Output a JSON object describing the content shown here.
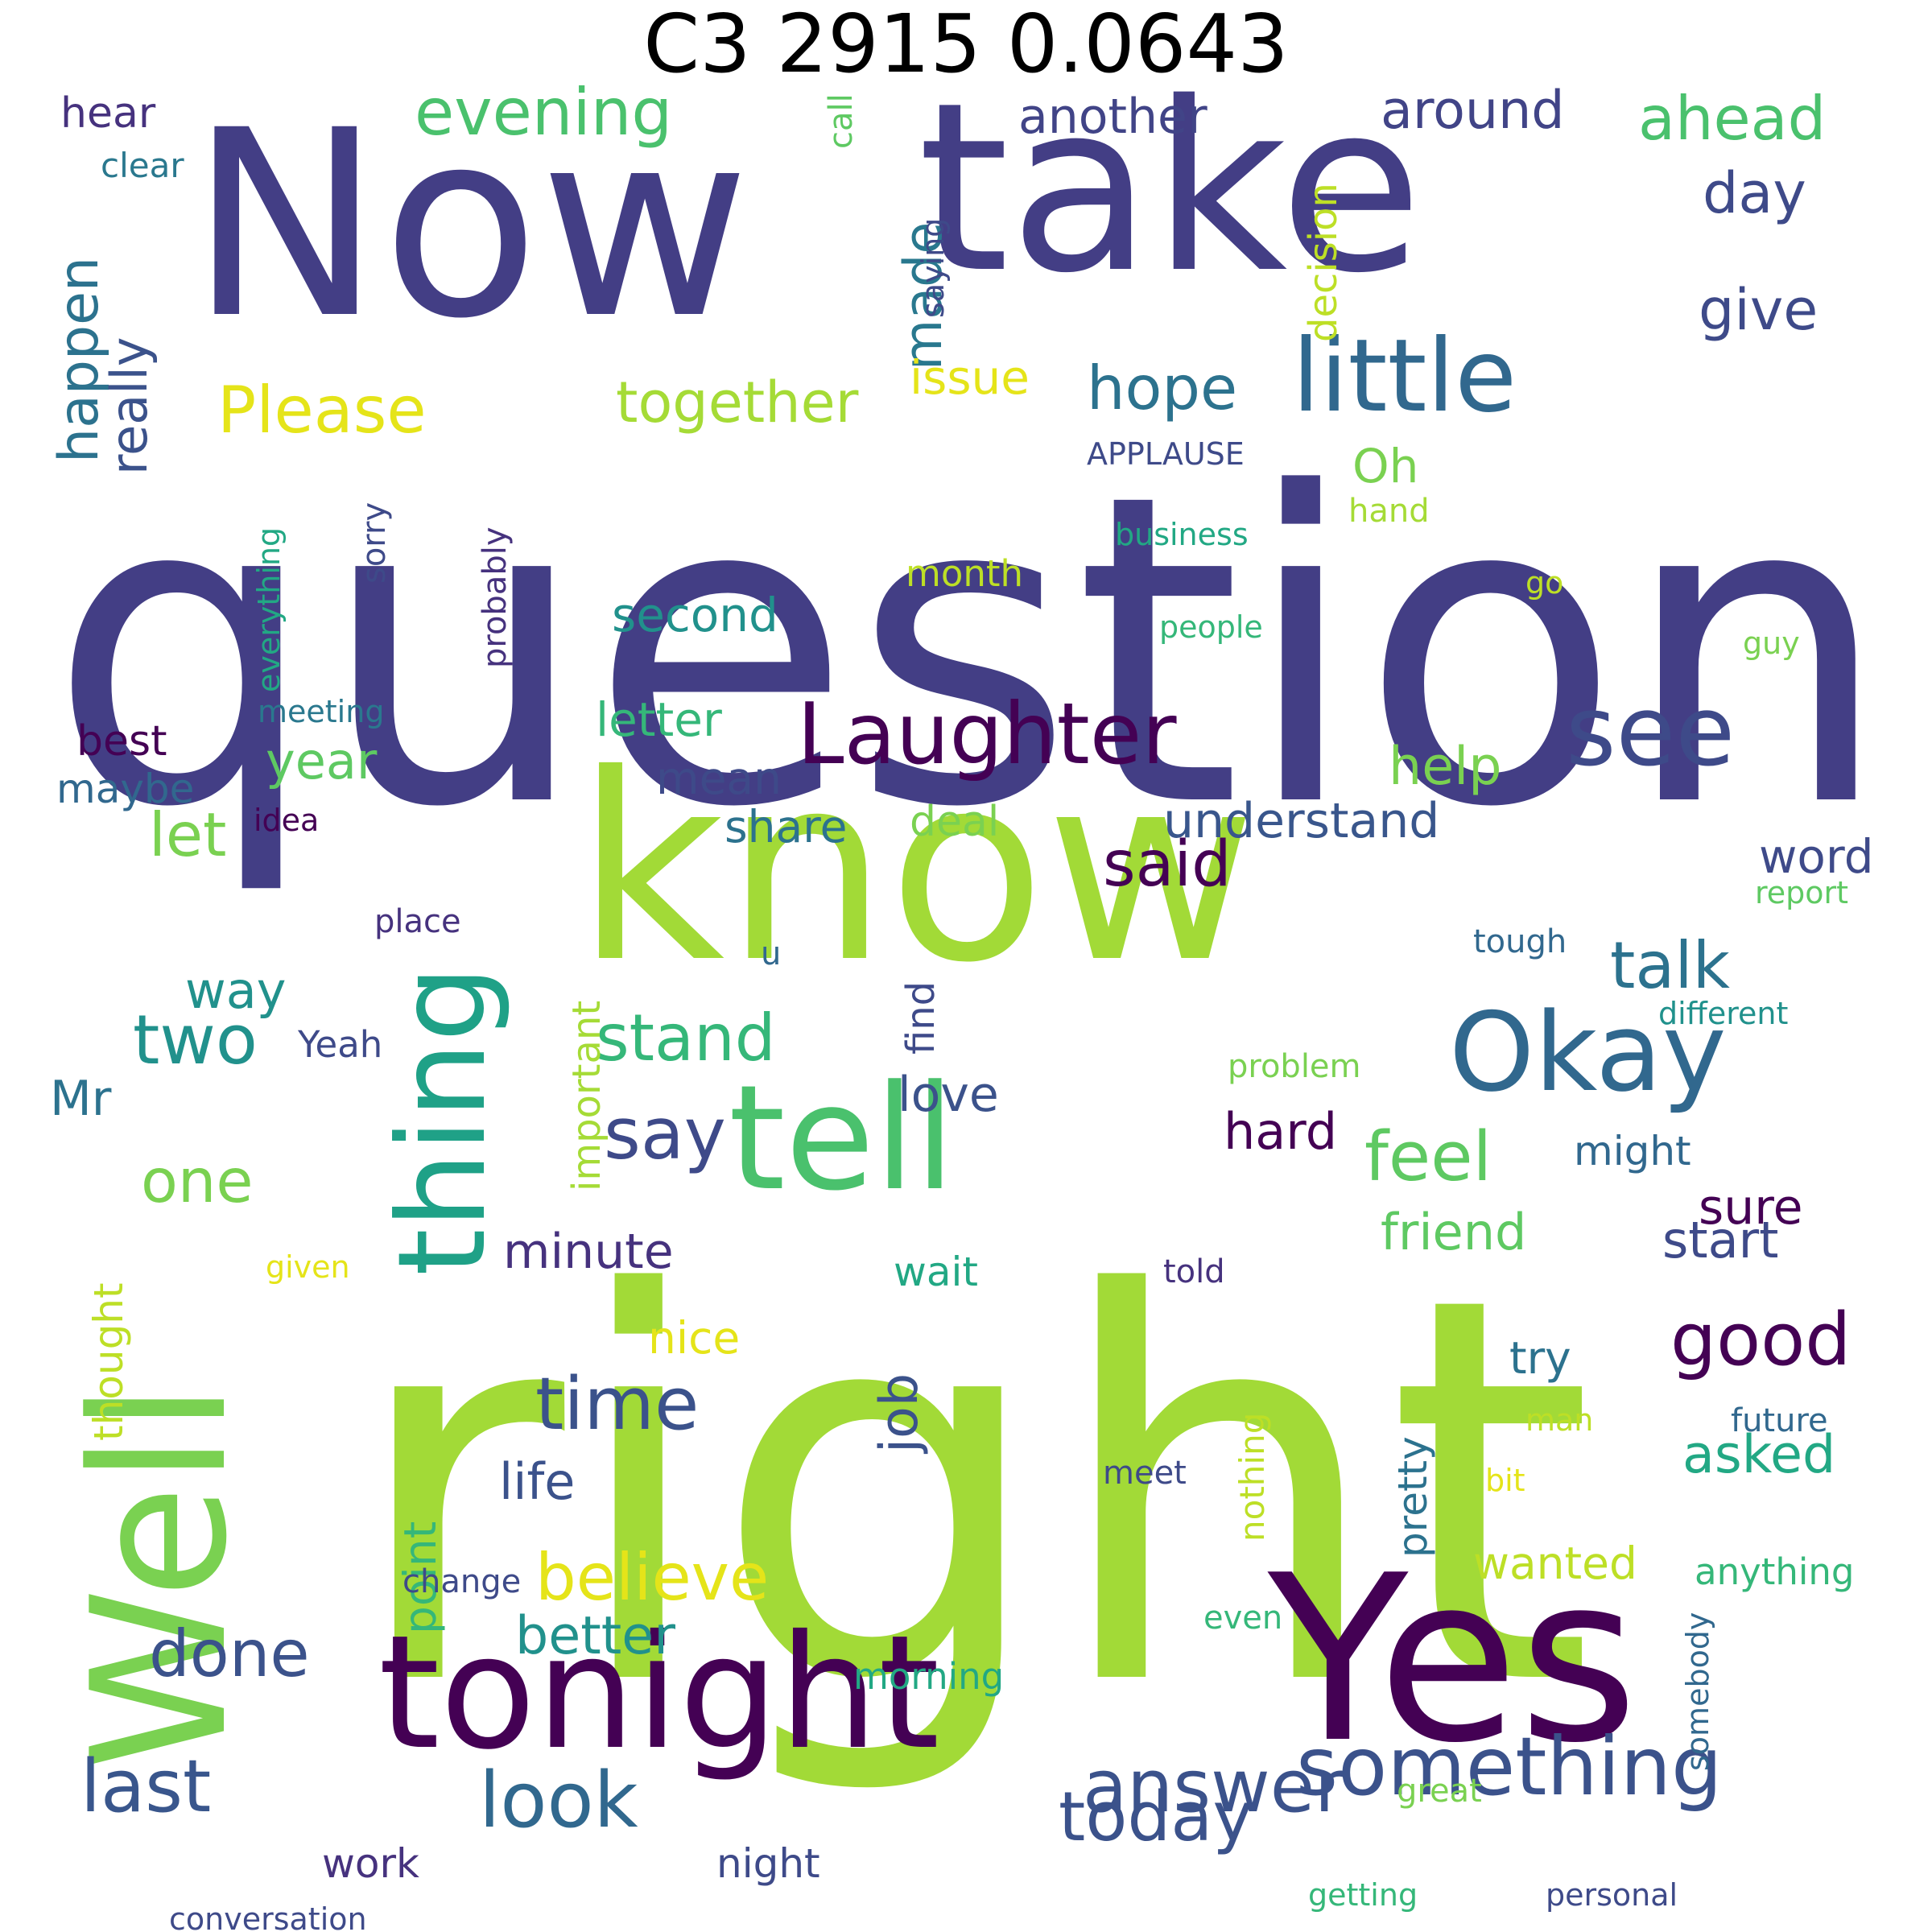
{
  "title": "C3 2915 0.0643",
  "words": [
    {
      "text": "question",
      "color": "#433e85"
    },
    {
      "text": "right",
      "color": "#a2da37"
    },
    {
      "text": "Now",
      "color": "#433e85"
    },
    {
      "text": "take",
      "color": "#433e85"
    },
    {
      "text": "know",
      "color": "#a2da37"
    },
    {
      "text": "Well",
      "color": "#7ad151"
    },
    {
      "text": "Yes",
      "color": "#440154"
    },
    {
      "text": "tonight",
      "color": "#440154"
    },
    {
      "text": "tell",
      "color": "#4ac16d"
    },
    {
      "text": "Okay",
      "color": "#31688e"
    },
    {
      "text": "thing",
      "color": "#1fa187"
    },
    {
      "text": "little",
      "color": "#31688e"
    },
    {
      "text": "Laughter",
      "color": "#440154"
    },
    {
      "text": "see",
      "color": "#3e4a89"
    },
    {
      "text": "something",
      "color": "#3b528b"
    },
    {
      "text": "Please",
      "color": "#e5e419"
    },
    {
      "text": "evening",
      "color": "#4ac16d"
    },
    {
      "text": "together",
      "color": "#a5db36"
    },
    {
      "text": "believe",
      "color": "#e5e419"
    },
    {
      "text": "time",
      "color": "#3b528b"
    },
    {
      "text": "said",
      "color": "#440154"
    },
    {
      "text": "say",
      "color": "#3e4a89"
    },
    {
      "text": "good",
      "color": "#440154"
    },
    {
      "text": "feel",
      "color": "#5ec962"
    },
    {
      "text": "talk",
      "color": "#2c728e"
    },
    {
      "text": "hope",
      "color": "#2c728e"
    },
    {
      "text": "stand",
      "color": "#35b779"
    },
    {
      "text": "two",
      "color": "#21918c"
    },
    {
      "text": "one",
      "color": "#7ad151"
    },
    {
      "text": "let",
      "color": "#7ad151"
    },
    {
      "text": "done",
      "color": "#3b528b"
    },
    {
      "text": "last",
      "color": "#39568c"
    },
    {
      "text": "look",
      "color": "#31688e"
    },
    {
      "text": "today",
      "color": "#3b528b"
    },
    {
      "text": "answer",
      "color": "#3b528b"
    },
    {
      "text": "happen",
      "color": "#2c728e"
    },
    {
      "text": "really",
      "color": "#3b528b"
    },
    {
      "text": "made",
      "color": "#29788e"
    },
    {
      "text": "another",
      "color": "#414487"
    },
    {
      "text": "around",
      "color": "#414487"
    },
    {
      "text": "ahead",
      "color": "#4ac16d"
    },
    {
      "text": "day",
      "color": "#3e4a89"
    },
    {
      "text": "give",
      "color": "#3e4a89"
    },
    {
      "text": "decision",
      "color": "#bddf26"
    },
    {
      "text": "issue",
      "color": "#e5e419"
    },
    {
      "text": "Oh",
      "color": "#7ad151"
    },
    {
      "text": "hear",
      "color": "#46327e"
    },
    {
      "text": "clear",
      "color": "#2a788e"
    },
    {
      "text": "call",
      "color": "#5ec962"
    },
    {
      "text": "saying",
      "color": "#3e4a89"
    },
    {
      "text": "APPLAUSE",
      "color": "#3e4a89"
    },
    {
      "text": "hand",
      "color": "#a5db36"
    },
    {
      "text": "business",
      "color": "#22a884"
    },
    {
      "text": "month",
      "color": "#bddf26"
    },
    {
      "text": "go",
      "color": "#bddf26"
    },
    {
      "text": "people",
      "color": "#35b779"
    },
    {
      "text": "guy",
      "color": "#7ad151"
    },
    {
      "text": "second",
      "color": "#21918c"
    },
    {
      "text": "letter",
      "color": "#35b779"
    },
    {
      "text": "help",
      "color": "#7ad151"
    },
    {
      "text": "mean",
      "color": "#3e4a89"
    },
    {
      "text": "year",
      "color": "#5ec962"
    },
    {
      "text": "share",
      "color": "#2c728e"
    },
    {
      "text": "deal",
      "color": "#7ad151"
    },
    {
      "text": "understand",
      "color": "#39568c"
    },
    {
      "text": "word",
      "color": "#3e4a89"
    },
    {
      "text": "report",
      "color": "#5ec962"
    },
    {
      "text": "everything",
      "color": "#22a884"
    },
    {
      "text": "sorry",
      "color": "#3e4a89"
    },
    {
      "text": "probably",
      "color": "#46327e"
    },
    {
      "text": "meeting",
      "color": "#2a788e"
    },
    {
      "text": "best",
      "color": "#440154"
    },
    {
      "text": "maybe",
      "color": "#31688e"
    },
    {
      "text": "idea",
      "color": "#440154"
    },
    {
      "text": "place",
      "color": "#46327e"
    },
    {
      "text": "u",
      "color": "#31688e"
    },
    {
      "text": "tough",
      "color": "#31688e"
    },
    {
      "text": "different",
      "color": "#21918c"
    },
    {
      "text": "important",
      "color": "#a5db36"
    },
    {
      "text": "find",
      "color": "#3e4a89"
    },
    {
      "text": "way",
      "color": "#21918c"
    },
    {
      "text": "Mr",
      "color": "#2c728e"
    },
    {
      "text": "Yeah",
      "color": "#3e4a89"
    },
    {
      "text": "love",
      "color": "#3b528b"
    },
    {
      "text": "problem",
      "color": "#7ad151"
    },
    {
      "text": "hard",
      "color": "#440154"
    },
    {
      "text": "might",
      "color": "#31688e"
    },
    {
      "text": "sure",
      "color": "#440154"
    },
    {
      "text": "minute",
      "color": "#46327e"
    },
    {
      "text": "friend",
      "color": "#5ec962"
    },
    {
      "text": "start",
      "color": "#3e4a89"
    },
    {
      "text": "given",
      "color": "#e5e419"
    },
    {
      "text": "wait",
      "color": "#22a884"
    },
    {
      "text": "told",
      "color": "#46327e"
    },
    {
      "text": "thought",
      "color": "#bddf26"
    },
    {
      "text": "job",
      "color": "#3b528b"
    },
    {
      "text": "nice",
      "color": "#e5e419"
    },
    {
      "text": "nothing",
      "color": "#bddf26"
    },
    {
      "text": "try",
      "color": "#2c728e"
    },
    {
      "text": "man",
      "color": "#bddf26"
    },
    {
      "text": "future",
      "color": "#31688e"
    },
    {
      "text": "pretty",
      "color": "#2c728e"
    },
    {
      "text": "asked",
      "color": "#22a884"
    },
    {
      "text": "life",
      "color": "#3b528b"
    },
    {
      "text": "point",
      "color": "#35b779"
    },
    {
      "text": "meet",
      "color": "#3e4a89"
    },
    {
      "text": "bit",
      "color": "#e5e419"
    },
    {
      "text": "change",
      "color": "#3e4a89"
    },
    {
      "text": "wanted",
      "color": "#bddf26"
    },
    {
      "text": "anything",
      "color": "#35b779"
    },
    {
      "text": "even",
      "color": "#35b779"
    },
    {
      "text": "better",
      "color": "#21918c"
    },
    {
      "text": "morning",
      "color": "#22a884"
    },
    {
      "text": "somebody",
      "color": "#31688e"
    },
    {
      "text": "great",
      "color": "#7ad151"
    },
    {
      "text": "work",
      "color": "#46327e"
    },
    {
      "text": "night",
      "color": "#3e4a89"
    },
    {
      "text": "getting",
      "color": "#35b779"
    },
    {
      "text": "personal",
      "color": "#3e4a89"
    },
    {
      "text": "conversation",
      "color": "#3e4a89"
    }
  ]
}
